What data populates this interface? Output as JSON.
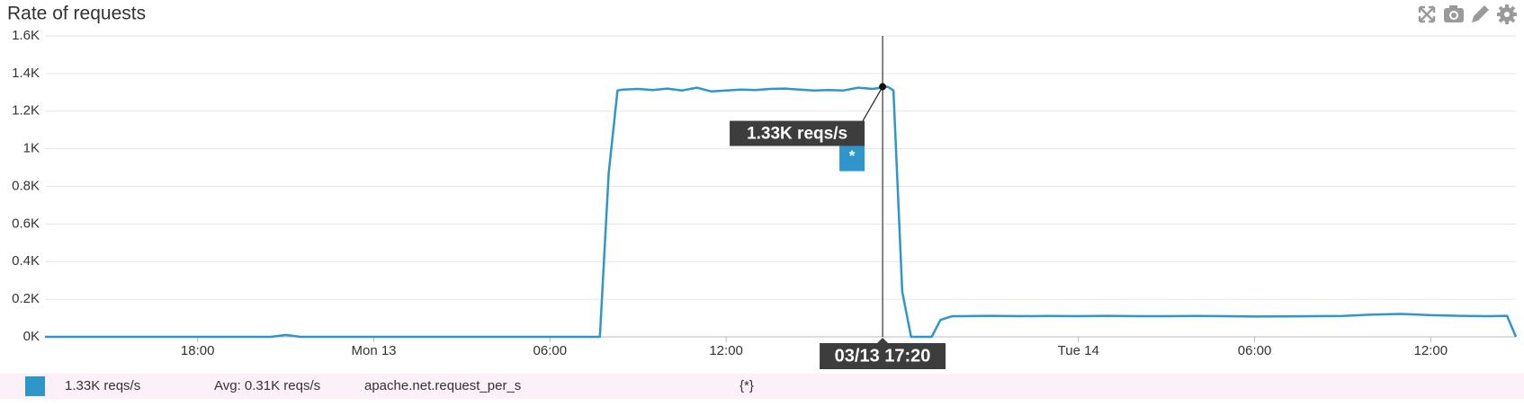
{
  "chart_data": {
    "type": "line",
    "title": "Rate of requests",
    "x": [
      -11.2,
      -3.5,
      -3.0,
      -2.5,
      7.7,
      8.0,
      8.3,
      8.5,
      9,
      9.5,
      10,
      10.5,
      11,
      11.5,
      12,
      12.5,
      13,
      13.5,
      14,
      14.5,
      15,
      15.5,
      16,
      16.5,
      17,
      17.5,
      17.7,
      18.0,
      18.3,
      19.0,
      19.3,
      19.7,
      20,
      21,
      22,
      23,
      24,
      25,
      26,
      27,
      28,
      29,
      30,
      31,
      32,
      33,
      34,
      35,
      36,
      37,
      38,
      38.6,
      38.9
    ],
    "series": [
      {
        "name": "*",
        "color": "#2f96cc",
        "values": [
          0,
          0,
          10,
          0,
          0,
          870,
          1310,
          1315,
          1318,
          1312,
          1320,
          1310,
          1325,
          1305,
          1310,
          1315,
          1312,
          1318,
          1320,
          1315,
          1310,
          1312,
          1310,
          1325,
          1318,
          1330,
          1310,
          240,
          0,
          0,
          90,
          110,
          110,
          112,
          110,
          111,
          110,
          112,
          110,
          110,
          111,
          110,
          108,
          109,
          110,
          111,
          118,
          122,
          115,
          112,
          110,
          112,
          0
        ]
      }
    ],
    "xlim": [
      -11.2,
      38.9
    ],
    "xticks": [
      {
        "value": -6,
        "label": "18:00"
      },
      {
        "value": 0,
        "label": "Mon 13"
      },
      {
        "value": 6,
        "label": "06:00"
      },
      {
        "value": 12,
        "label": "12:00"
      },
      {
        "value": 24,
        "label": "Tue 14"
      },
      {
        "value": 30,
        "label": "06:00"
      },
      {
        "value": 36,
        "label": "12:00"
      }
    ],
    "ylim": [
      0,
      1600
    ],
    "yticks": [
      {
        "value": 0,
        "label": "0K"
      },
      {
        "value": 200,
        "label": "0.2K"
      },
      {
        "value": 400,
        "label": "0.4K"
      },
      {
        "value": 600,
        "label": "0.6K"
      },
      {
        "value": 800,
        "label": "0.8K"
      },
      {
        "value": 1000,
        "label": "1K"
      },
      {
        "value": 1200,
        "label": "1.2K"
      },
      {
        "value": 1400,
        "label": "1.4K"
      },
      {
        "value": 1600,
        "label": "1.6K"
      }
    ],
    "grid": true,
    "tooltip": {
      "x": 17.33,
      "y": 1330,
      "text": "1.33K reqs/s",
      "x_text": "03/13 17:20"
    },
    "legend": {
      "value": "1.33K reqs/s",
      "avg": "Avg: 0.31K reqs/s",
      "metric": "apache.net.request_per_s",
      "scope": "{*}"
    }
  }
}
